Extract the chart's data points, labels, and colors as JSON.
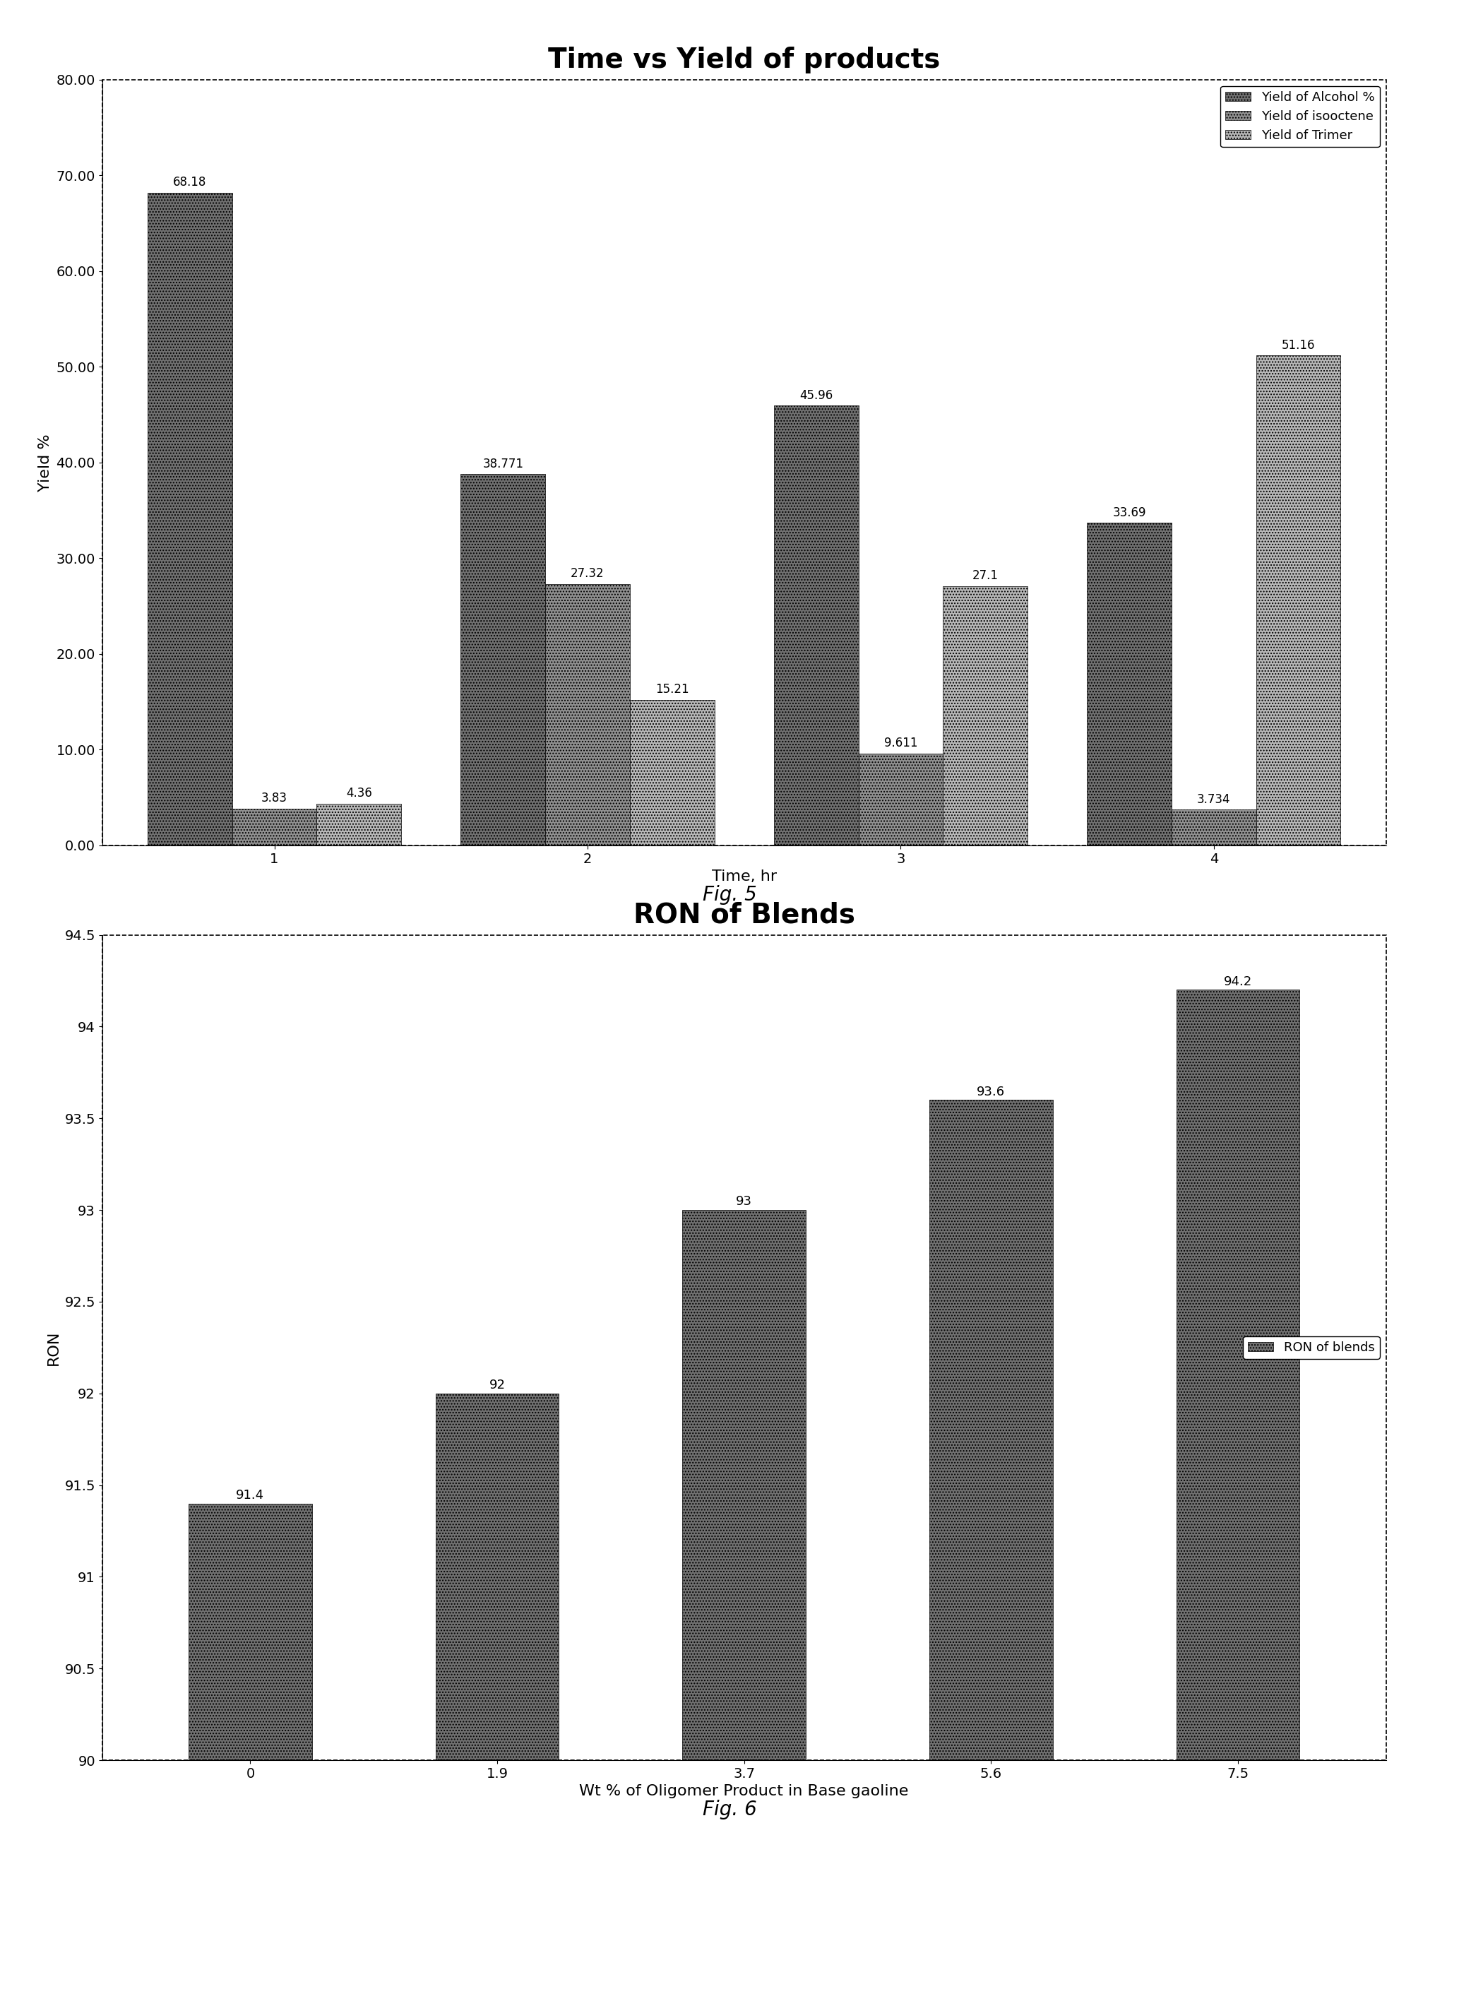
{
  "fig5": {
    "title": "Time vs Yield of products",
    "xlabel": "Time, hr",
    "ylabel": "Yield %",
    "ylim": [
      0,
      80
    ],
    "yticks": [
      0.0,
      10.0,
      20.0,
      30.0,
      40.0,
      50.0,
      60.0,
      70.0,
      80.0
    ],
    "ytick_labels": [
      "0.00",
      "10.00",
      "20.00",
      "30.00",
      "40.00",
      "50.00",
      "60.00",
      "70.00",
      "80.00"
    ],
    "xtick_labels": [
      "1",
      "2",
      "3",
      "4"
    ],
    "series": [
      {
        "name": "Yield of Alcohol %",
        "values": [
          68.18,
          38.771,
          45.96,
          33.69
        ],
        "color": "#707070",
        "hatch": "...."
      },
      {
        "name": "Yield of isooctene",
        "values": [
          3.83,
          27.32,
          9.611,
          3.734
        ],
        "color": "#909090",
        "hatch": "...."
      },
      {
        "name": "Yield of Trimer",
        "values": [
          4.36,
          15.21,
          27.1,
          51.16
        ],
        "color": "#b8b8b8",
        "hatch": "...."
      }
    ],
    "bar_width": 0.27,
    "background_color": "#ffffff",
    "fig_caption": "Fig. 5",
    "legend_labels": [
      "Yield of Alcohol %",
      "Yield of isooctene",
      "Yield of Trimer"
    ]
  },
  "fig6": {
    "title": "RON of Blends",
    "xlabel": "Wt % of Oligomer Product in Base gaoline",
    "ylabel": "RON",
    "ylim": [
      90,
      94.5
    ],
    "yticks": [
      90,
      90.5,
      91,
      91.5,
      92,
      92.5,
      93,
      93.5,
      94,
      94.5
    ],
    "ytick_labels": [
      "90",
      "90.5",
      "91",
      "91.5",
      "92",
      "92.5",
      "93",
      "93.5",
      "94",
      "94.5"
    ],
    "xtick_labels": [
      "0",
      "1.9",
      "3.7",
      "5.6",
      "7.5"
    ],
    "series": [
      {
        "name": "RON of blends",
        "values": [
          91.4,
          92,
          93,
          93.6,
          94.2
        ],
        "color": "#707070",
        "hatch": "...."
      }
    ],
    "bar_width": 0.5,
    "background_color": "#ffffff",
    "fig_caption": "Fig. 6"
  },
  "page_bg": "#ffffff",
  "title_fontsize": 28,
  "axis_label_fontsize": 16,
  "tick_fontsize": 14,
  "bar_label_fontsize": 12,
  "legend_fontsize": 13,
  "caption_fontsize": 20
}
